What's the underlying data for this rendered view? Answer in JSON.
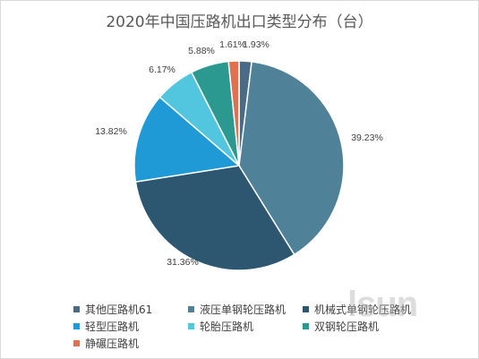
{
  "chart_data": {
    "type": "pie",
    "title": "2020年中国压路机出口类型分布（台）",
    "slices": [
      {
        "name": "其他压路机61",
        "value": 1.93,
        "label": "1.93%",
        "color": "#4a6b85"
      },
      {
        "name": "液压单钢轮压路机",
        "value": 39.23,
        "label": "39.23%",
        "color": "#4f8199"
      },
      {
        "name": "机械式单钢轮压路机",
        "value": 31.36,
        "label": "31.36%",
        "color": "#2d5670"
      },
      {
        "name": "轻型压路机",
        "value": 13.82,
        "label": "13.82%",
        "color": "#1f9ad6"
      },
      {
        "name": "轮胎压路机",
        "value": 6.17,
        "label": "6.17%",
        "color": "#52c6de"
      },
      {
        "name": "双钢轮压路机",
        "value": 5.88,
        "label": "5.88%",
        "color": "#2c9990"
      },
      {
        "name": "静碾压路机",
        "value": 1.61,
        "label": "1.61%",
        "color": "#e07050"
      }
    ],
    "legend_position": "bottom"
  },
  "watermark": "lsun"
}
